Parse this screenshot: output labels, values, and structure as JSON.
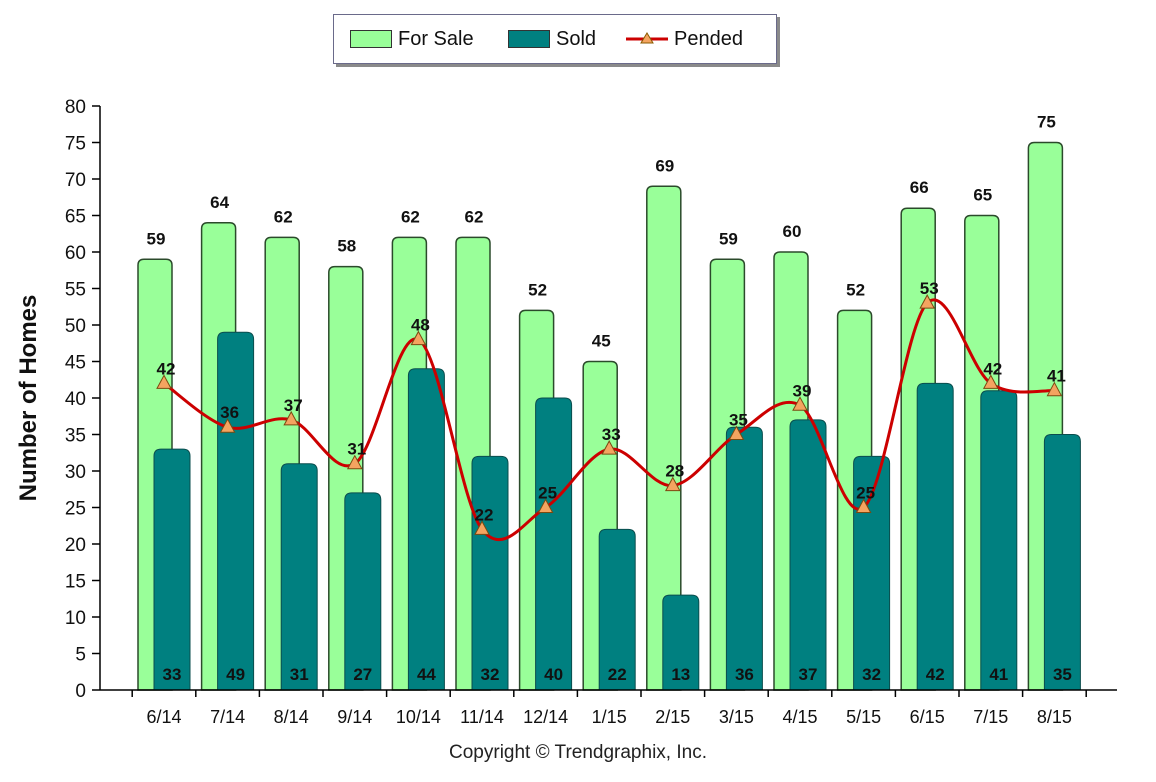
{
  "legend": {
    "for_sale_label": "For Sale",
    "sold_label": "Sold",
    "pended_label": "Pended"
  },
  "copyright": "Copyright © Trendgraphix, Inc.",
  "colors": {
    "for_sale": "#99ff99",
    "sold": "#008080",
    "pended": "#cc0000",
    "pended_marker": "#f4a460"
  },
  "chart_data": {
    "type": "bar",
    "ylabel": "Number of Homes",
    "xlabel": "",
    "ylim": [
      0,
      80
    ],
    "ytick_step": 5,
    "grid": false,
    "legend_position": "top-center",
    "categories": [
      "6/14",
      "7/14",
      "8/14",
      "9/14",
      "10/14",
      "11/14",
      "12/14",
      "1/15",
      "2/15",
      "3/15",
      "4/15",
      "5/15",
      "6/15",
      "7/15",
      "8/15"
    ],
    "series": [
      {
        "name": "For Sale",
        "type": "bar",
        "values": [
          59,
          64,
          62,
          58,
          62,
          62,
          52,
          45,
          69,
          59,
          60,
          52,
          66,
          65,
          75
        ]
      },
      {
        "name": "Sold",
        "type": "bar",
        "values": [
          33,
          49,
          31,
          27,
          44,
          32,
          40,
          22,
          13,
          36,
          37,
          32,
          42,
          41,
          35
        ]
      },
      {
        "name": "Pended",
        "type": "line",
        "values": [
          42,
          36,
          37,
          31,
          48,
          22,
          25,
          33,
          28,
          35,
          39,
          25,
          53,
          42,
          41
        ]
      }
    ]
  }
}
